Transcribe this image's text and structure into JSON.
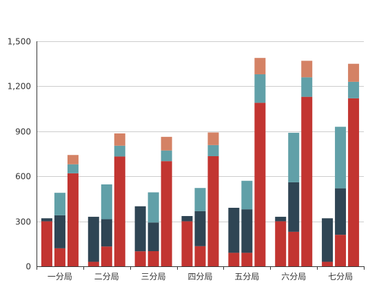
{
  "chart_data": {
    "type": "bar",
    "stacked": true,
    "categories": [
      "一分局",
      "二分局",
      "三分局",
      "四分局",
      "五分局",
      "六分局",
      "七分局"
    ],
    "y_ticks": [
      "0",
      "300",
      "600",
      "900",
      "1,200",
      "1,500"
    ],
    "ylim": [
      0,
      1500
    ],
    "grid": true,
    "legend": "none",
    "title": "",
    "xlabel": "",
    "ylabel": "",
    "colors": [
      "#c23531",
      "#2f4554",
      "#61a0a8",
      "#d48265"
    ],
    "stacks": [
      {
        "series": [
          {
            "index": 0,
            "values": [
              300,
              30,
              100,
              300,
              90,
              300,
              30
            ]
          },
          {
            "index": 1,
            "values": [
              20,
              300,
              300,
              35,
              300,
              30,
              290
            ]
          }
        ]
      },
      {
        "series": [
          {
            "index": 0,
            "values": [
              120,
              132,
              101,
              134,
              90,
              230,
              210
            ]
          },
          {
            "index": 1,
            "values": [
              220,
              182,
              191,
              234,
              290,
              330,
              310
            ]
          },
          {
            "index": 2,
            "values": [
              150,
              232,
              201,
              154,
              190,
              330,
              410
            ]
          }
        ]
      },
      {
        "series": [
          {
            "index": 0,
            "values": [
              620,
              732,
              701,
              734,
              1090,
              1130,
              1120
            ]
          },
          {
            "index": 2,
            "values": [
              60,
              72,
              71,
              74,
              190,
              130,
              110
            ]
          },
          {
            "index": 3,
            "values": [
              62,
              82,
              91,
              84,
              109,
              110,
              120
            ]
          }
        ]
      }
    ]
  }
}
